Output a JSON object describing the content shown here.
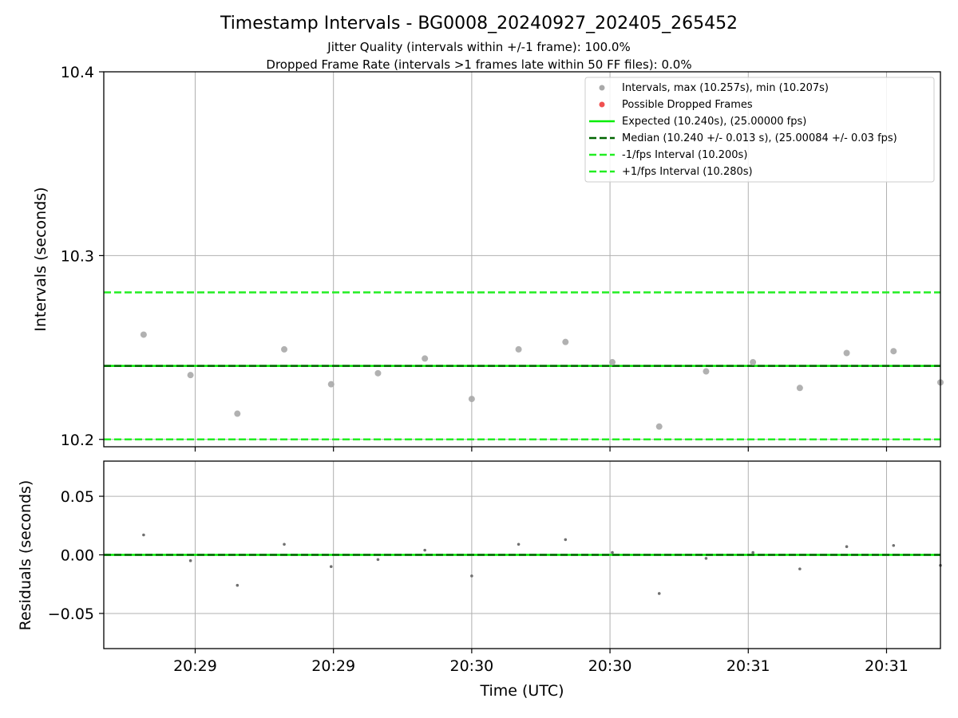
{
  "chart_data": [
    {
      "type": "scatter",
      "title": "Timestamp Intervals - BG0008_20240927_202405_265452",
      "subtitles": [
        "Jitter Quality (intervals within +/-1 frame): 100.0%",
        "Dropped Frame Rate (intervals >1 frames late within 50 FF files): 0.0%"
      ],
      "ylabel": "Intervals (seconds)",
      "ylim": [
        10.196,
        10.4
      ],
      "yticks": [
        "10.2",
        "10.3",
        "10.4"
      ],
      "ytick_values": [
        10.2,
        10.3,
        10.4
      ],
      "grid": true,
      "legend_position": "top-right",
      "series": [
        {
          "name": "Intervals, max (10.257s), min (10.207s)",
          "color": "#a9a9a9",
          "x": [
            1,
            2,
            3,
            4,
            5,
            6,
            7,
            8,
            9,
            10,
            11,
            12,
            13,
            14,
            15,
            16,
            17,
            18
          ],
          "values": [
            10.257,
            10.235,
            10.214,
            10.249,
            10.23,
            10.236,
            10.244,
            10.222,
            10.249,
            10.253,
            10.242,
            10.207,
            10.237,
            10.242,
            10.228,
            10.247,
            10.248,
            10.231
          ]
        },
        {
          "name": "Possible Dropped Frames",
          "color": "#f05050",
          "x": [],
          "values": []
        }
      ],
      "lines": [
        {
          "name": "Expected (10.240s), (25.00000 fps)",
          "value": 10.24,
          "color": "#00ee00",
          "dash": "solid"
        },
        {
          "name": "Median (10.240 +/- 0.013 s), (25.00084 +/- 0.03 fps)",
          "value": 10.24,
          "color": "#006400",
          "dash": "dashed"
        },
        {
          "name": "-1/fps Interval (10.200s)",
          "value": 10.2,
          "color": "#22ee22",
          "dash": "dashed"
        },
        {
          "name": "+1/fps Interval (10.280s)",
          "value": 10.28,
          "color": "#22ee22",
          "dash": "dashed"
        }
      ]
    },
    {
      "type": "scatter",
      "xlabel": "Time (UTC)",
      "ylabel": "Residuals (seconds)",
      "ylim": [
        -0.08,
        0.08
      ],
      "yticks": [
        "0.05",
        "0.00",
        "−0.05"
      ],
      "ytick_values": [
        0.05,
        0.0,
        -0.05
      ],
      "xticks": [
        "20:29",
        "20:29",
        "20:30",
        "20:30",
        "20:31",
        "20:31"
      ],
      "xtick_values": [
        2.1,
        5.05,
        8.0,
        10.95,
        13.9,
        16.85
      ],
      "xlim": [
        0.15,
        18.0
      ],
      "grid": true,
      "series": [
        {
          "name": "Residuals",
          "color": "#707070",
          "x": [
            1,
            2,
            3,
            4,
            5,
            6,
            7,
            8,
            9,
            10,
            11,
            12,
            13,
            14,
            15,
            16,
            17,
            18
          ],
          "values": [
            0.017,
            -0.005,
            -0.026,
            0.009,
            -0.01,
            -0.004,
            0.004,
            -0.018,
            0.009,
            0.013,
            0.002,
            -0.033,
            -0.003,
            0.002,
            -0.012,
            0.007,
            0.008,
            -0.009
          ]
        }
      ],
      "lines": [
        {
          "value": 0.0,
          "color": "#00ee00",
          "dash": "solid"
        },
        {
          "value": 0.0,
          "color": "#006400",
          "dash": "dashed"
        }
      ]
    }
  ]
}
